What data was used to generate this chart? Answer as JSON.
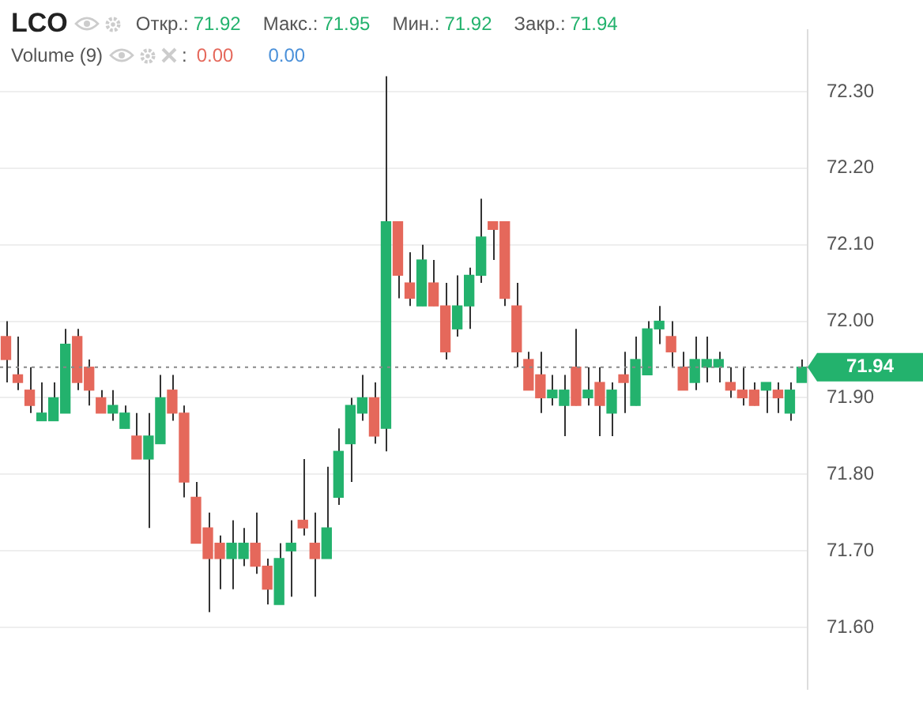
{
  "chart_data": {
    "type": "candlestick",
    "title": "LCO",
    "subtitle": "Volume (9)",
    "annotations": [
      "Откр.:",
      "71.92",
      "Макс.:",
      "71.95",
      "Мин.:",
      "71.92",
      "Закр.:",
      "71.94",
      ":",
      "0.00",
      "0.00"
    ],
    "categories": [
      null,
      null,
      null,
      null,
      null,
      null,
      null,
      null,
      null,
      null,
      null,
      null,
      null,
      null,
      null,
      null,
      null,
      null,
      null,
      null,
      null,
      null,
      null,
      null,
      null,
      null,
      null,
      null,
      null,
      null,
      null,
      null,
      null,
      null,
      null,
      null,
      null,
      null,
      null,
      null,
      null,
      null,
      null,
      null,
      null,
      null,
      null,
      null,
      null,
      null,
      null,
      null,
      null,
      null,
      null,
      null,
      null,
      null,
      null,
      null,
      null,
      null,
      null,
      null,
      null,
      null,
      null,
      null
    ],
    "ohlc": [
      [
        71.98,
        72.0,
        71.92,
        71.95
      ],
      [
        71.93,
        71.98,
        71.91,
        71.92
      ],
      [
        71.91,
        71.94,
        71.88,
        71.89
      ],
      [
        71.87,
        71.92,
        71.87,
        71.88
      ],
      [
        71.87,
        71.92,
        71.87,
        71.9
      ],
      [
        71.88,
        71.99,
        71.88,
        71.97
      ],
      [
        71.98,
        71.99,
        71.91,
        71.92
      ],
      [
        71.94,
        71.95,
        71.89,
        71.91
      ],
      [
        71.9,
        71.91,
        71.88,
        71.88
      ],
      [
        71.88,
        71.91,
        71.87,
        71.89
      ],
      [
        71.86,
        71.89,
        71.86,
        71.88
      ],
      [
        71.85,
        71.88,
        71.82,
        71.82
      ],
      [
        71.82,
        71.88,
        71.73,
        71.85
      ],
      [
        71.84,
        71.93,
        71.84,
        71.9
      ],
      [
        71.91,
        71.93,
        71.87,
        71.88
      ],
      [
        71.88,
        71.89,
        71.77,
        71.79
      ],
      [
        71.77,
        71.79,
        71.71,
        71.71
      ],
      [
        71.73,
        71.75,
        71.62,
        71.69
      ],
      [
        71.71,
        71.72,
        71.65,
        71.69
      ],
      [
        71.69,
        71.74,
        71.65,
        71.71
      ],
      [
        71.69,
        71.73,
        71.68,
        71.71
      ],
      [
        71.71,
        71.75,
        71.67,
        71.68
      ],
      [
        71.68,
        71.69,
        71.63,
        71.65
      ],
      [
        71.63,
        71.71,
        71.63,
        71.69
      ],
      [
        71.7,
        71.74,
        71.64,
        71.71
      ],
      [
        71.74,
        71.82,
        71.72,
        71.73
      ],
      [
        71.71,
        71.75,
        71.64,
        71.69
      ],
      [
        71.69,
        71.81,
        71.69,
        71.73
      ],
      [
        71.77,
        71.86,
        71.76,
        71.83
      ],
      [
        71.84,
        71.9,
        71.79,
        71.89
      ],
      [
        71.88,
        71.93,
        71.87,
        71.9
      ],
      [
        71.9,
        71.92,
        71.84,
        71.85
      ],
      [
        71.86,
        72.32,
        71.83,
        72.13
      ],
      [
        72.13,
        72.13,
        72.03,
        72.06
      ],
      [
        72.05,
        72.09,
        72.02,
        72.03
      ],
      [
        72.02,
        72.1,
        72.02,
        72.08
      ],
      [
        72.05,
        72.08,
        72.02,
        72.02
      ],
      [
        72.02,
        72.05,
        71.95,
        71.96
      ],
      [
        71.99,
        72.06,
        71.98,
        72.02
      ],
      [
        72.02,
        72.07,
        71.99,
        72.06
      ],
      [
        72.06,
        72.16,
        72.05,
        72.11
      ],
      [
        72.13,
        72.13,
        72.08,
        72.12
      ],
      [
        72.13,
        72.13,
        72.02,
        72.03
      ],
      [
        72.02,
        72.05,
        71.94,
        71.96
      ],
      [
        71.95,
        71.96,
        71.91,
        71.91
      ],
      [
        71.93,
        71.96,
        71.88,
        71.9
      ],
      [
        71.9,
        71.93,
        71.89,
        71.91
      ],
      [
        71.89,
        71.93,
        71.85,
        71.91
      ],
      [
        71.94,
        71.99,
        71.89,
        71.89
      ],
      [
        71.9,
        71.94,
        71.89,
        71.91
      ],
      [
        71.92,
        71.94,
        71.85,
        71.89
      ],
      [
        71.88,
        71.92,
        71.85,
        71.91
      ],
      [
        71.93,
        71.96,
        71.88,
        71.92
      ],
      [
        71.89,
        71.98,
        71.89,
        71.95
      ],
      [
        71.93,
        72.0,
        71.93,
        71.99
      ],
      [
        71.99,
        72.02,
        71.97,
        72.0
      ],
      [
        71.98,
        72.0,
        71.94,
        71.96
      ],
      [
        71.94,
        71.96,
        71.91,
        71.91
      ],
      [
        71.92,
        71.98,
        71.91,
        71.95
      ],
      [
        71.94,
        71.98,
        71.92,
        71.95
      ],
      [
        71.94,
        71.96,
        71.92,
        71.95
      ],
      [
        71.92,
        71.94,
        71.9,
        71.91
      ],
      [
        71.91,
        71.94,
        71.89,
        71.9
      ],
      [
        71.91,
        71.92,
        71.89,
        71.89
      ],
      [
        71.91,
        71.92,
        71.88,
        71.92
      ],
      [
        71.91,
        71.92,
        71.88,
        71.9
      ],
      [
        71.88,
        71.92,
        71.87,
        71.91
      ],
      [
        71.92,
        71.95,
        71.92,
        71.94
      ]
    ],
    "colors": [
      "#e5685b",
      "#e5685b",
      "#e5685b",
      "#23b26d",
      "#23b26d",
      "#23b26d",
      "#e5685b",
      "#e5685b",
      "#e5685b",
      "#23b26d",
      "#23b26d",
      "#e5685b",
      "#23b26d",
      "#23b26d",
      "#e5685b",
      "#e5685b",
      "#e5685b",
      "#e5685b",
      "#e5685b",
      "#23b26d",
      "#23b26d",
      "#e5685b",
      "#e5685b",
      "#23b26d",
      "#23b26d",
      "#e5685b",
      "#e5685b",
      "#23b26d",
      "#23b26d",
      "#23b26d",
      "#23b26d",
      "#e5685b",
      "#23b26d",
      "#e5685b",
      "#e5685b",
      "#23b26d",
      "#e5685b",
      "#e5685b",
      "#23b26d",
      "#23b26d",
      "#23b26d",
      "#e5685b",
      "#e5685b",
      "#e5685b",
      "#e5685b",
      "#e5685b",
      "#23b26d",
      "#23b26d",
      "#e5685b",
      "#23b26d",
      "#e5685b",
      "#23b26d",
      "#e5685b",
      "#23b26d",
      "#23b26d",
      "#23b26d",
      "#e5685b",
      "#e5685b",
      "#23b26d",
      "#23b26d",
      "#23b26d",
      "#e5685b",
      "#e5685b",
      "#e5685b",
      "#23b26d",
      "#e5685b",
      "#23b26d",
      "#23b26d"
    ],
    "ylim": [
      71.52,
      72.38
    ],
    "yticks": [
      {
        "value": 71.6,
        "label": "71.60"
      },
      {
        "value": 71.7,
        "label": "71.70"
      },
      {
        "value": 71.8,
        "label": "71.80"
      },
      {
        "value": 71.9,
        "label": "71.90"
      },
      {
        "value": 72.0,
        "label": "72.00"
      },
      {
        "value": 72.1,
        "label": "72.10"
      },
      {
        "value": 72.2,
        "label": "72.20"
      },
      {
        "value": 72.3,
        "label": "72.30"
      }
    ],
    "ref_lines": [
      {
        "axis": "y",
        "value": 71.94,
        "label": "71.94",
        "line_style": "dotted"
      }
    ],
    "grid": "y",
    "tick_labels": "y"
  }
}
